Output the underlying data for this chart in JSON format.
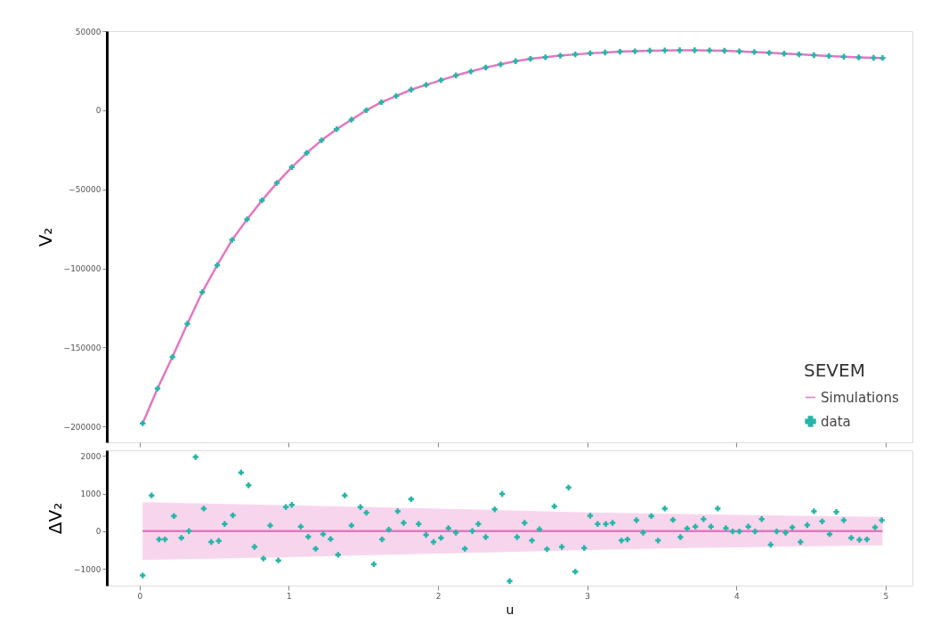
{
  "chart_data": [
    {
      "type": "line",
      "ylabel": "V₂",
      "legend_title": "SEVEM",
      "legend": "bottom right",
      "grid": false,
      "tick_labels": "y",
      "xlim": [
        -0.22,
        5.18
      ],
      "xticks": [
        0,
        1,
        2,
        3,
        4,
        5
      ],
      "ylim": [
        -210000,
        50000
      ],
      "yticks": [
        -200000,
        -150000,
        -100000,
        -50000,
        0,
        50000
      ],
      "series": [
        {
          "name": "Simulations",
          "color": "#e377c2",
          "line_style": "solid",
          "x": [
            0.02,
            0.12,
            0.22,
            0.32,
            0.42,
            0.52,
            0.62,
            0.72,
            0.82,
            0.92,
            1.02,
            1.12,
            1.22,
            1.32,
            1.42,
            1.52,
            1.62,
            1.72,
            1.82,
            1.92,
            2.02,
            2.12,
            2.22,
            2.32,
            2.42,
            2.52,
            2.62,
            2.72,
            2.82,
            2.92,
            3.02,
            3.12,
            3.22,
            3.32,
            3.42,
            3.52,
            3.62,
            3.72,
            3.82,
            3.92,
            4.02,
            4.12,
            4.22,
            4.32,
            4.42,
            4.52,
            4.62,
            4.72,
            4.82,
            4.92,
            4.98
          ],
          "values": [
            -198000,
            -176000,
            -156000,
            -135000,
            -115000,
            -98000,
            -82000,
            -69000,
            -57000,
            -46000,
            -36000,
            -27000,
            -19000,
            -12000,
            -6000,
            0,
            5000,
            9000,
            13000,
            16000,
            19000,
            22000,
            24500,
            27000,
            29000,
            31000,
            32500,
            33500,
            34500,
            35300,
            36000,
            36500,
            37000,
            37300,
            37600,
            37800,
            37900,
            37900,
            37800,
            37600,
            37200,
            36800,
            36300,
            35800,
            35300,
            34800,
            34300,
            33800,
            33400,
            33100,
            33000
          ]
        },
        {
          "name": "data",
          "type": "scatter",
          "color": "#26b5a8",
          "marker": "cross",
          "x": [
            0.02,
            0.12,
            0.22,
            0.32,
            0.42,
            0.52,
            0.62,
            0.72,
            0.82,
            0.92,
            1.02,
            1.12,
            1.22,
            1.32,
            1.42,
            1.52,
            1.62,
            1.72,
            1.82,
            1.92,
            2.02,
            2.12,
            2.22,
            2.32,
            2.42,
            2.52,
            2.62,
            2.72,
            2.82,
            2.92,
            3.02,
            3.12,
            3.22,
            3.32,
            3.42,
            3.52,
            3.62,
            3.72,
            3.82,
            3.92,
            4.02,
            4.12,
            4.22,
            4.32,
            4.42,
            4.52,
            4.62,
            4.72,
            4.82,
            4.92,
            4.98
          ],
          "values": [
            -198000,
            -176000,
            -156000,
            -135000,
            -115000,
            -98000,
            -82000,
            -69000,
            -57000,
            -46000,
            -36000,
            -27000,
            -19000,
            -12000,
            -6000,
            0,
            5000,
            9000,
            13000,
            16000,
            19000,
            22000,
            24500,
            27000,
            29000,
            31000,
            32500,
            33500,
            34500,
            35300,
            36000,
            36500,
            37000,
            37300,
            37600,
            37800,
            37900,
            37900,
            37800,
            37600,
            37200,
            36800,
            36300,
            35800,
            35300,
            34800,
            34300,
            33800,
            33400,
            33100,
            33000
          ]
        }
      ]
    },
    {
      "type": "scatter",
      "ylabel": "ΔV₂",
      "xlabel": "u",
      "grid": false,
      "xlim": [
        -0.22,
        5.18
      ],
      "xticks": [
        0,
        1,
        2,
        3,
        4,
        5
      ],
      "ylim": [
        -1450,
        2150
      ],
      "yticks": [
        -1000,
        0,
        1000,
        2000
      ],
      "series": [
        {
          "type": "line",
          "color": "#e377c2",
          "line_style": "solid",
          "x": [
            0.02,
            1,
            2,
            3,
            4,
            4.98
          ],
          "values": [
            0,
            0,
            0,
            0,
            0,
            0
          ],
          "lower": [
            -770,
            -690,
            -600,
            -500,
            -430,
            -380
          ],
          "upper": [
            770,
            690,
            600,
            500,
            430,
            380
          ]
        },
        {
          "color": "#26b5a8",
          "marker": "cross",
          "x": [
            0.02,
            0.08,
            0.13,
            0.17,
            0.23,
            0.28,
            0.33,
            0.375,
            0.43,
            0.48,
            0.53,
            0.57,
            0.625,
            0.68,
            0.73,
            0.77,
            0.83,
            0.875,
            0.93,
            0.98,
            1.02,
            1.08,
            1.13,
            1.18,
            1.23,
            1.28,
            1.33,
            1.375,
            1.42,
            1.48,
            1.52,
            1.57,
            1.625,
            1.67,
            1.73,
            1.77,
            1.82,
            1.87,
            1.92,
            1.97,
            2.02,
            2.07,
            2.12,
            2.18,
            2.23,
            2.27,
            2.32,
            2.38,
            2.43,
            2.48,
            2.53,
            2.58,
            2.63,
            2.68,
            2.73,
            2.78,
            2.83,
            2.875,
            2.92,
            2.98,
            3.02,
            3.07,
            3.125,
            3.17,
            3.23,
            3.27,
            3.33,
            3.375,
            3.43,
            3.475,
            3.52,
            3.575,
            3.625,
            3.67,
            3.725,
            3.78,
            3.83,
            3.875,
            3.93,
            3.975,
            4.02,
            4.08,
            4.125,
            4.17,
            4.23,
            4.27,
            4.33,
            4.375,
            4.43,
            4.475,
            4.52,
            4.575,
            4.625,
            4.67,
            4.72,
            4.77,
            4.825,
            4.875,
            4.93,
            4.975
          ],
          "values": [
            -1180,
            950,
            -220,
            -220,
            400,
            -180,
            0,
            1970,
            600,
            -290,
            -260,
            190,
            420,
            1560,
            1220,
            -420,
            -730,
            150,
            -780,
            640,
            700,
            120,
            -150,
            -470,
            -80,
            -210,
            -630,
            950,
            150,
            640,
            490,
            -880,
            -220,
            40,
            530,
            220,
            850,
            190,
            -100,
            -290,
            -180,
            80,
            -40,
            -470,
            0,
            190,
            -160,
            580,
            990,
            -1330,
            -160,
            220,
            -250,
            50,
            -480,
            660,
            -420,
            1160,
            -1080,
            -450,
            410,
            190,
            190,
            220,
            -250,
            -220,
            290,
            -40,
            400,
            -250,
            600,
            300,
            -160,
            70,
            120,
            320,
            120,
            600,
            80,
            -10,
            -10,
            120,
            -10,
            320,
            -360,
            -10,
            -40,
            100,
            -290,
            160,
            530,
            260,
            -80,
            510,
            290,
            -180,
            -230,
            -220,
            100,
            290
          ]
        }
      ]
    }
  ]
}
